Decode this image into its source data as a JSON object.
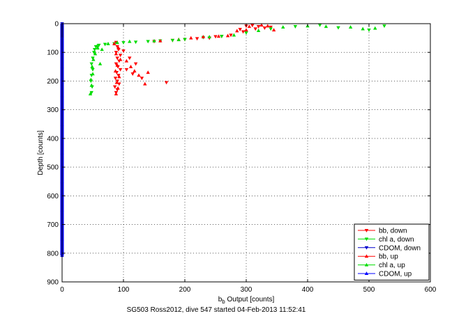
{
  "chart_data": {
    "type": "scatter",
    "title": "",
    "xlabel": "b",
    "xlabel_sub": "b",
    "xlabel_rest": " Output [counts]",
    "ylabel": "Depth [counts]",
    "caption": "SG503 Ross2012, dive 547 started 04-Feb-2013 11:52:41",
    "xlim": [
      0,
      600
    ],
    "ylim": [
      0,
      900
    ],
    "y_reversed": true,
    "x_ticks": [
      0,
      100,
      200,
      300,
      400,
      500,
      600
    ],
    "y_ticks": [
      0,
      100,
      200,
      300,
      400,
      500,
      600,
      700,
      800,
      900
    ],
    "grid": true,
    "legend_placement": "bottom-right",
    "series": [
      {
        "name": "bb, down",
        "color": "#ff0000",
        "marker": "triangle-down",
        "points": [
          [
            88,
            65
          ],
          [
            90,
            80
          ],
          [
            92,
            90
          ],
          [
            88,
            100
          ],
          [
            95,
            110
          ],
          [
            90,
            120
          ],
          [
            93,
            130
          ],
          [
            88,
            140
          ],
          [
            91,
            150
          ],
          [
            95,
            160
          ],
          [
            89,
            170
          ],
          [
            92,
            180
          ],
          [
            87,
            190
          ],
          [
            90,
            200
          ],
          [
            93,
            210
          ],
          [
            86,
            220
          ],
          [
            90,
            230
          ],
          [
            88,
            240
          ],
          [
            100,
            95
          ],
          [
            110,
            120
          ],
          [
            120,
            140
          ],
          [
            105,
            160
          ],
          [
            115,
            175
          ],
          [
            130,
            190
          ],
          [
            170,
            205
          ],
          [
            150,
            62
          ],
          [
            180,
            58
          ],
          [
            200,
            55
          ],
          [
            220,
            52
          ],
          [
            240,
            50
          ],
          [
            250,
            45
          ],
          [
            260,
            44
          ],
          [
            275,
            40
          ],
          [
            290,
            20
          ],
          [
            300,
            8
          ],
          [
            310,
            6
          ],
          [
            320,
            10
          ],
          [
            330,
            15
          ],
          [
            340,
            12
          ],
          [
            315,
            18
          ],
          [
            295,
            28
          ]
        ]
      },
      {
        "name": "chl a, down",
        "color": "#00dd00",
        "marker": "triangle-down",
        "points": [
          [
            55,
            80
          ],
          [
            52,
            100
          ],
          [
            50,
            120
          ],
          [
            48,
            140
          ],
          [
            50,
            160
          ],
          [
            48,
            180
          ],
          [
            47,
            200
          ],
          [
            49,
            220
          ],
          [
            48,
            240
          ],
          [
            53,
            90
          ],
          [
            60,
            75
          ],
          [
            70,
            72
          ],
          [
            85,
            70
          ],
          [
            100,
            66
          ],
          [
            120,
            64
          ],
          [
            140,
            62
          ],
          [
            160,
            60
          ],
          [
            180,
            58
          ],
          [
            200,
            55
          ],
          [
            230,
            48
          ],
          [
            260,
            44
          ],
          [
            300,
            32
          ],
          [
            340,
            18
          ],
          [
            380,
            10
          ],
          [
            420,
            5
          ],
          [
            450,
            14
          ],
          [
            500,
            22
          ],
          [
            525,
            8
          ]
        ]
      },
      {
        "name": "CDOM, down",
        "color": "#0000cc",
        "marker": "triangle-down",
        "points": [
          [
            0,
            0
          ],
          [
            0,
            100
          ],
          [
            0,
            200
          ],
          [
            0,
            300
          ],
          [
            0,
            400
          ],
          [
            0,
            500
          ],
          [
            0,
            600
          ],
          [
            0,
            700
          ],
          [
            0,
            800
          ]
        ]
      },
      {
        "name": "bb, up",
        "color": "#ff0000",
        "marker": "triangle-up",
        "points": [
          [
            85,
            70
          ],
          [
            92,
            85
          ],
          [
            88,
            105
          ],
          [
            95,
            125
          ],
          [
            90,
            145
          ],
          [
            87,
            165
          ],
          [
            93,
            185
          ],
          [
            89,
            205
          ],
          [
            91,
            225
          ],
          [
            88,
            245
          ],
          [
            105,
            130
          ],
          [
            112,
            150
          ],
          [
            118,
            165
          ],
          [
            125,
            180
          ],
          [
            135,
            210
          ],
          [
            140,
            170
          ],
          [
            160,
            60
          ],
          [
            190,
            55
          ],
          [
            210,
            50
          ],
          [
            230,
            46
          ],
          [
            255,
            44
          ],
          [
            270,
            42
          ],
          [
            285,
            25
          ],
          [
            305,
            10
          ],
          [
            325,
            5
          ],
          [
            345,
            22
          ],
          [
            335,
            8
          ],
          [
            300,
            22
          ]
        ]
      },
      {
        "name": "chl a, up",
        "color": "#00dd00",
        "marker": "triangle-up",
        "points": [
          [
            58,
            85
          ],
          [
            54,
            105
          ],
          [
            51,
            125
          ],
          [
            49,
            150
          ],
          [
            50,
            175
          ],
          [
            47,
            195
          ],
          [
            48,
            215
          ],
          [
            46,
            245
          ],
          [
            57,
            78
          ],
          [
            62,
            140
          ],
          [
            65,
            90
          ],
          [
            75,
            70
          ],
          [
            90,
            66
          ],
          [
            110,
            62
          ],
          [
            150,
            60
          ],
          [
            190,
            56
          ],
          [
            240,
            46
          ],
          [
            280,
            40
          ],
          [
            320,
            24
          ],
          [
            360,
            12
          ],
          [
            400,
            8
          ],
          [
            430,
            10
          ],
          [
            470,
            12
          ],
          [
            490,
            18
          ],
          [
            510,
            16
          ]
        ]
      },
      {
        "name": "CDOM, up",
        "color": "#0000ff",
        "marker": "triangle-up",
        "points": [
          [
            0,
            50
          ],
          [
            0,
            150
          ],
          [
            0,
            250
          ],
          [
            0,
            350
          ],
          [
            0,
            450
          ],
          [
            0,
            550
          ],
          [
            0,
            650
          ],
          [
            0,
            750
          ],
          [
            0,
            808
          ]
        ]
      }
    ]
  }
}
